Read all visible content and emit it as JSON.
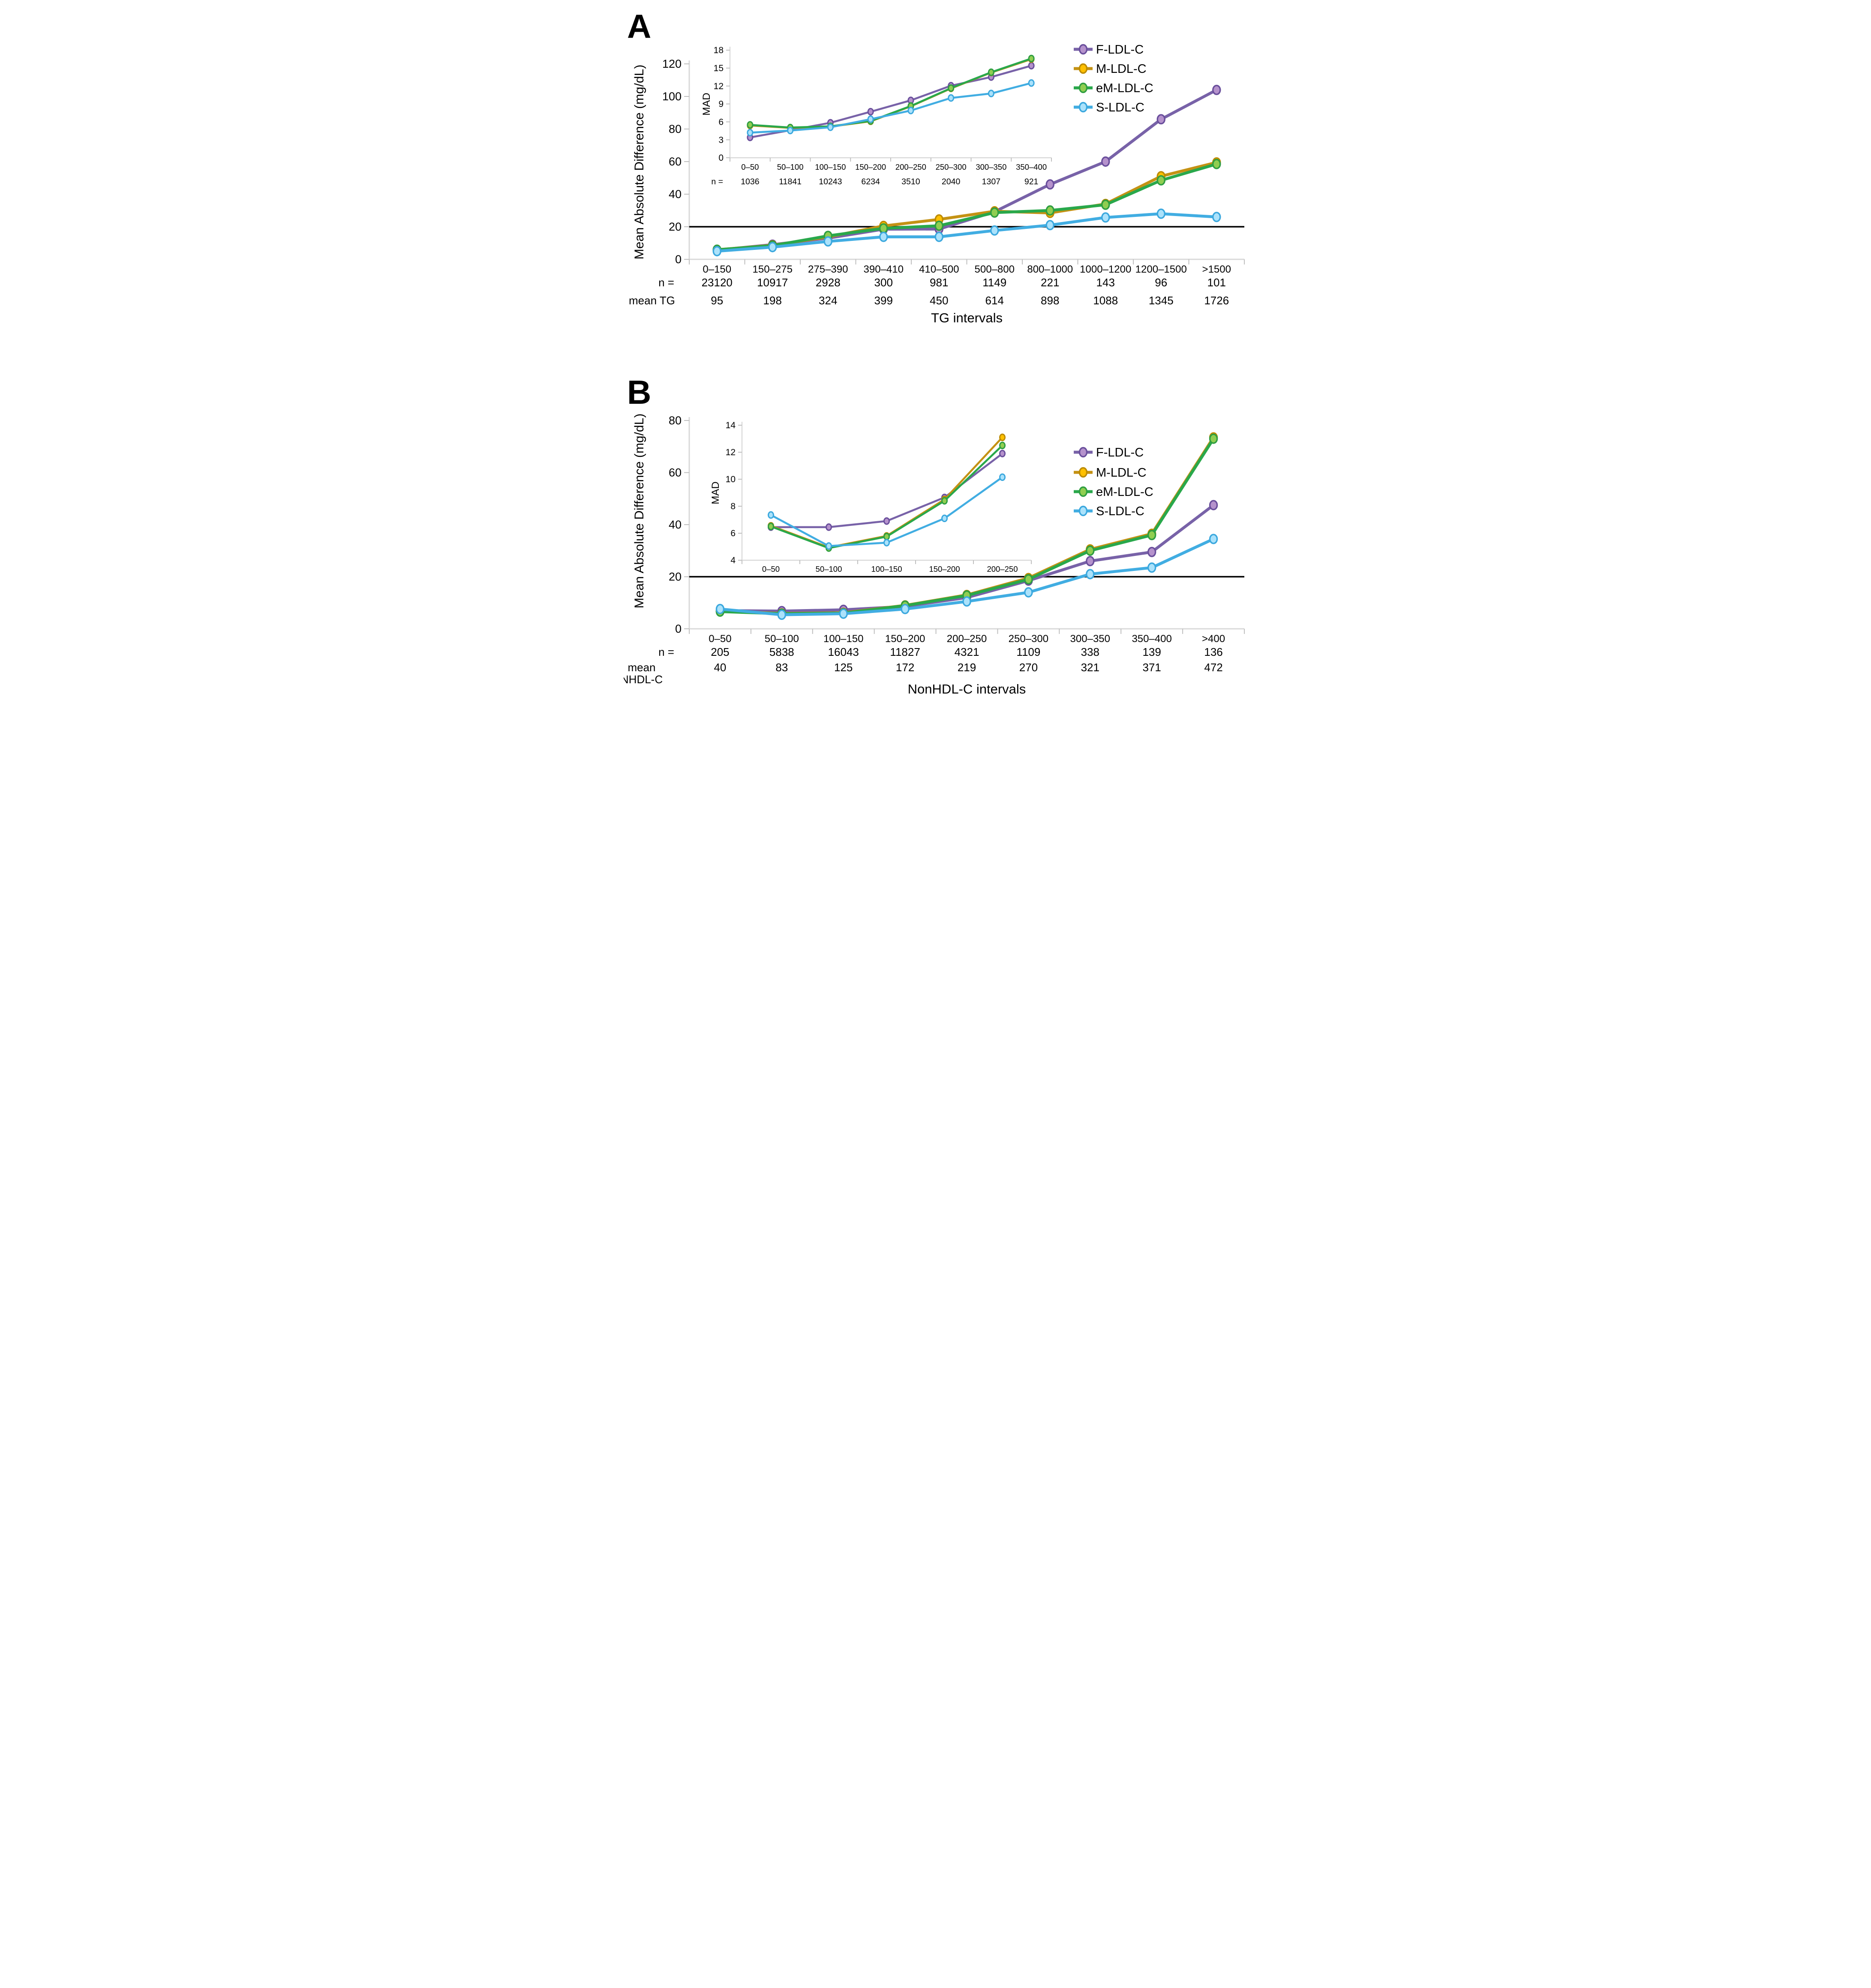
{
  "figure": {
    "panel_a_label": "A",
    "panel_b_label": "B",
    "y_axis_title": "Mean Absolute Difference (mg/dL)",
    "mad_axis_label": "MAD",
    "n_prefix": "n =",
    "axis_color": "#D9D9D9",
    "tick_color": "#BFBFBF",
    "reference_line_color": "#000000"
  },
  "legend": [
    {
      "label": "F-LDL-C",
      "line": "#7862A8",
      "fill": "#B592CC",
      "stroke": "#6A4F9C"
    },
    {
      "label": "M-LDL-C",
      "line": "#C49214",
      "fill": "#FFC000",
      "stroke": "#BC8B00"
    },
    {
      "label": "eM-LDL-C",
      "line": "#29A84B",
      "fill": "#90CE51",
      "stroke": "#2F9E41"
    },
    {
      "label": "S-LDL-C",
      "line": "#41ADE2",
      "fill": "#ABE2FB",
      "stroke": "#3BA8DE"
    }
  ],
  "chart_data": [
    {
      "id": "A-main",
      "type": "line",
      "title": "",
      "xlabel": "TG intervals",
      "ylabel": "Mean Absolute Difference (mg/dL)",
      "ylim": [
        0,
        120
      ],
      "ytick": 20,
      "grid": false,
      "legend_position": "inside-top-right",
      "reference_line": 20,
      "categories": [
        "0–150",
        "150–275",
        "275–390",
        "390–410",
        "410–500",
        "500–800",
        "800–1000",
        "1000–1200",
        "1200–1500",
        ">1500"
      ],
      "series": [
        {
          "name": "F-LDL-C",
          "values": [
            5.7,
            9.0,
            13.0,
            18.5,
            18.6,
            29.2,
            46.0,
            60.0,
            86.0,
            104.0
          ]
        },
        {
          "name": "M-LDL-C",
          "values": [
            5.9,
            8.6,
            13.8,
            20.5,
            24.5,
            29.5,
            28.5,
            34.0,
            51.0,
            59.5
          ]
        },
        {
          "name": "eM-LDL-C",
          "values": [
            5.9,
            8.4,
            14.4,
            19.0,
            20.6,
            28.7,
            30.0,
            33.5,
            48.5,
            58.5
          ]
        },
        {
          "name": "S-LDL-C",
          "values": [
            5.0,
            7.5,
            11.0,
            13.8,
            13.8,
            17.7,
            21.0,
            25.7,
            28.0,
            26.0
          ]
        }
      ],
      "n_label": "n =",
      "n_values": [
        "23120",
        "10917",
        "2928",
        "300",
        "981",
        "1149",
        "221",
        "143",
        "96",
        "101"
      ],
      "mean_label": "mean TG",
      "mean_values": [
        "95",
        "198",
        "324",
        "399",
        "450",
        "614",
        "898",
        "1088",
        "1345",
        "1726"
      ]
    },
    {
      "id": "A-inset",
      "type": "line",
      "title": "",
      "xlabel": "",
      "ylabel": "MAD",
      "ylim": [
        0,
        18
      ],
      "ytick": 3,
      "grid": false,
      "categories": [
        "0–50",
        "50–100",
        "100–150",
        "150–200",
        "200–250",
        "250–300",
        "300–350",
        "350–400"
      ],
      "series": [
        {
          "name": "F-LDL-C",
          "values": [
            3.4,
            4.6,
            5.85,
            7.7,
            9.6,
            12.05,
            13.5,
            15.4
          ]
        },
        {
          "name": "M-LDL-C",
          "values": [
            5.4,
            5.0,
            5.2,
            6.1,
            8.6,
            11.6,
            14.25,
            16.5
          ]
        },
        {
          "name": "eM-LDL-C",
          "values": [
            5.5,
            5.05,
            5.25,
            6.15,
            8.65,
            11.65,
            14.3,
            16.6
          ]
        },
        {
          "name": "S-LDL-C",
          "values": [
            4.2,
            4.55,
            5.1,
            6.45,
            7.9,
            10.0,
            10.75,
            12.5
          ]
        }
      ],
      "n_label": "n =",
      "n_values": [
        "1036",
        "11841",
        "10243",
        "6234",
        "3510",
        "2040",
        "1307",
        "921"
      ]
    },
    {
      "id": "B-main",
      "type": "line",
      "title": "",
      "xlabel": "NonHDL-C intervals",
      "ylabel": "Mean Absolute Difference (mg/dL)",
      "ylim": [
        0,
        80
      ],
      "ytick": 20,
      "grid": false,
      "legend_position": "inside-top-right",
      "reference_line": 20,
      "categories": [
        "0–50",
        "50–100",
        "100–150",
        "150–200",
        "200–250",
        "250–300",
        "300–350",
        "350–400",
        ">400"
      ],
      "series": [
        {
          "name": "F-LDL-C",
          "values": [
            7.0,
            6.8,
            7.3,
            8.6,
            12.0,
            18.5,
            26.0,
            29.5,
            47.5
          ]
        },
        {
          "name": "M-LDL-C",
          "values": [
            6.8,
            5.9,
            6.15,
            9.0,
            13.0,
            19.5,
            30.5,
            36.5,
            73.5
          ]
        },
        {
          "name": "eM-LDL-C",
          "values": [
            6.6,
            5.8,
            6.0,
            8.9,
            12.8,
            19.0,
            30.0,
            36.0,
            73.0
          ]
        },
        {
          "name": "S-LDL-C",
          "values": [
            7.6,
            5.4,
            5.8,
            7.6,
            10.5,
            14.0,
            21.0,
            23.5,
            34.5
          ]
        }
      ],
      "n_label": "n =",
      "n_values": [
        "205",
        "5838",
        "16043",
        "11827",
        "4321",
        "1109",
        "338",
        "139",
        "136"
      ],
      "mean_label_line1": "mean",
      "mean_label_line2": "NHDL-C",
      "mean_values": [
        "40",
        "83",
        "125",
        "172",
        "219",
        "270",
        "321",
        "371",
        "472"
      ]
    },
    {
      "id": "B-inset",
      "type": "line",
      "title": "",
      "xlabel": "",
      "ylabel": "MAD",
      "ylim": [
        4,
        14
      ],
      "ytick": 2,
      "grid": false,
      "categories": [
        "0–50",
        "50–100",
        "100–150",
        "150–200",
        "200–250"
      ],
      "series": [
        {
          "name": "F-LDL-C",
          "values": [
            6.45,
            6.45,
            6.9,
            8.65,
            11.9
          ]
        },
        {
          "name": "M-LDL-C",
          "values": [
            6.55,
            4.95,
            5.8,
            8.5,
            13.1
          ]
        },
        {
          "name": "eM-LDL-C",
          "values": [
            6.5,
            4.9,
            5.75,
            8.4,
            12.5
          ]
        },
        {
          "name": "S-LDL-C",
          "values": [
            7.35,
            5.05,
            5.3,
            7.1,
            10.15
          ]
        }
      ]
    }
  ]
}
